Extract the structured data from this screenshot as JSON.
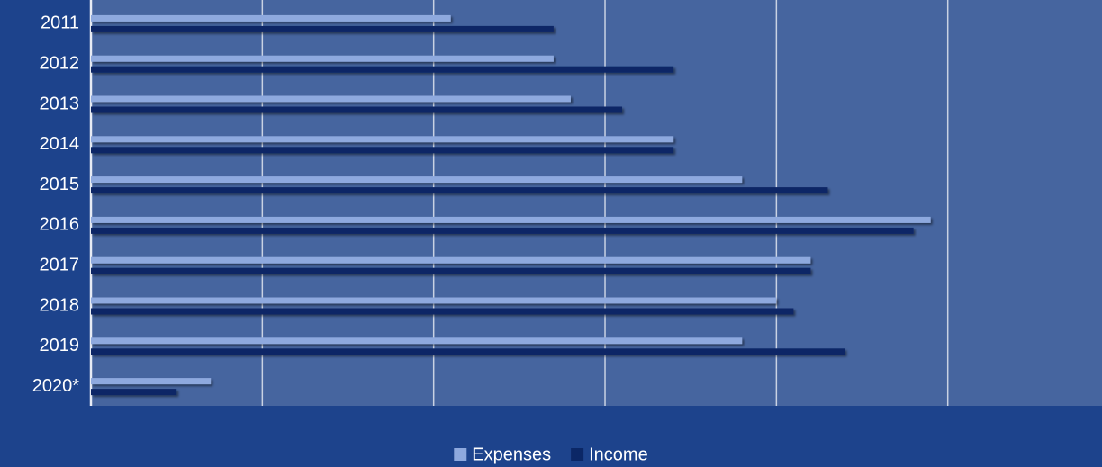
{
  "chart_data": {
    "type": "hbar",
    "categories": [
      "2011",
      "2012",
      "2013",
      "2014",
      "2015",
      "2016",
      "2017",
      "2018",
      "2019",
      "2020*"
    ],
    "series": [
      {
        "name": "Expenses",
        "color": "#8ea9de",
        "values": [
          2.1,
          2.7,
          2.8,
          3.4,
          3.8,
          4.9,
          4.2,
          4.0,
          3.8,
          0.7
        ]
      },
      {
        "name": "Income",
        "color": "#0b2766",
        "values": [
          2.7,
          3.4,
          3.1,
          3.4,
          4.3,
          4.8,
          4.2,
          4.1,
          4.4,
          0.5
        ]
      }
    ],
    "xlim": [
      0,
      5.9
    ],
    "xticks": [
      0,
      1,
      2,
      3,
      4,
      5
    ],
    "grid": true,
    "legend": "bottom"
  }
}
